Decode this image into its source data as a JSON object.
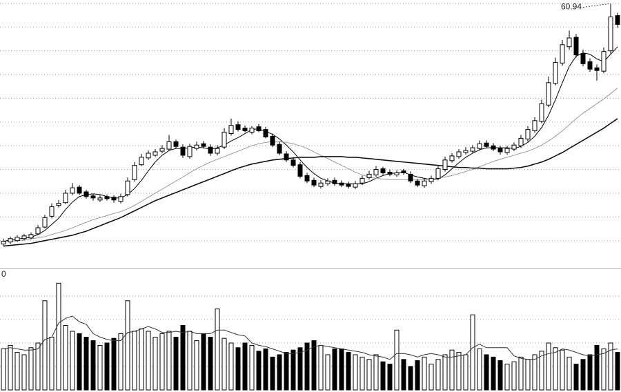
{
  "chart_data": [
    {
      "type": "candlestick",
      "open": [
        25.5,
        25.8,
        26.0,
        26.3,
        26.4,
        27.0,
        28.0,
        29.6,
        31.2,
        31.6,
        33.0,
        33.9,
        33.2,
        32.6,
        32.0,
        32.5,
        32.4,
        31.8,
        32.8,
        35.0,
        37.2,
        38.2,
        38.6,
        39.2,
        39.5,
        40.6,
        39.8,
        38.4,
        39.6,
        40.3,
        39.8,
        38.9,
        39.8,
        41.8,
        43.1,
        42.6,
        42.0,
        42.8,
        42.4,
        41.4,
        40.2,
        38.8,
        37.9,
        37.2,
        35.6,
        34.9,
        34.0,
        34.4,
        34.9,
        34.5,
        34.3,
        33.9,
        34.5,
        35.3,
        35.7,
        36.6,
        36.1,
        35.7,
        36.3,
        35.8,
        34.8,
        34.1,
        34.7,
        35.2,
        36.5,
        37.8,
        38.4,
        39.0,
        39.2,
        39.6,
        40.4,
        40.0,
        39.6,
        39.0,
        39.5,
        40.0,
        41.0,
        42.2,
        43.6,
        46.0,
        49.2,
        52.2,
        54.6,
        56.0,
        53.6,
        52.4,
        51.5,
        51.0,
        54.0,
        59.2
      ],
      "high": [
        26.3,
        26.6,
        26.8,
        27.0,
        27.2,
        28.3,
        29.8,
        31.5,
        32.0,
        33.5,
        34.5,
        34.2,
        33.5,
        32.9,
        32.7,
        32.8,
        32.7,
        32.9,
        35.3,
        37.6,
        38.8,
        39.3,
        39.5,
        40.1,
        41.6,
        40.9,
        40.2,
        40.3,
        40.6,
        40.7,
        40.2,
        40.1,
        42.6,
        44.0,
        43.6,
        43.0,
        42.9,
        43.2,
        42.8,
        41.8,
        40.6,
        39.2,
        38.3,
        37.6,
        36.0,
        35.3,
        34.9,
        35.2,
        35.3,
        34.9,
        34.7,
        34.8,
        35.6,
        36.3,
        37.0,
        36.9,
        36.5,
        36.4,
        36.6,
        36.2,
        35.1,
        35.2,
        35.6,
        37.0,
        38.4,
        38.9,
        39.5,
        39.8,
        40.1,
        40.8,
        40.8,
        40.4,
        40.0,
        40.0,
        40.5,
        41.6,
        42.9,
        44.2,
        46.8,
        50.2,
        53.0,
        55.6,
        57.0,
        56.5,
        54.2,
        52.9,
        52.0,
        54.5,
        60.94,
        59.6
      ],
      "low": [
        25.3,
        25.5,
        25.8,
        26.0,
        26.2,
        26.8,
        27.8,
        29.3,
        30.9,
        31.4,
        32.7,
        32.7,
        32.2,
        31.9,
        31.7,
        31.9,
        31.6,
        31.5,
        32.5,
        34.7,
        37.0,
        37.9,
        38.4,
        38.9,
        39.3,
        39.6,
        38.2,
        38.1,
        39.3,
        39.6,
        38.5,
        38.6,
        39.5,
        41.5,
        42.1,
        42.0,
        41.7,
        42.0,
        41.1,
        39.8,
        38.6,
        37.6,
        36.8,
        35.2,
        34.5,
        33.9,
        33.7,
        34.1,
        34.1,
        33.9,
        33.7,
        33.6,
        34.2,
        35.0,
        35.4,
        35.7,
        35.5,
        35.4,
        35.7,
        34.5,
        33.9,
        33.8,
        34.4,
        34.9,
        36.2,
        37.5,
        38.1,
        38.7,
        38.9,
        39.3,
        39.6,
        39.2,
        38.7,
        38.7,
        39.2,
        39.7,
        40.6,
        41.9,
        43.3,
        45.7,
        48.9,
        51.8,
        54.2,
        53.0,
        51.7,
        50.9,
        49.6,
        50.7,
        53.6,
        57.4
      ],
      "close": [
        25.9,
        26.3,
        26.5,
        26.7,
        26.9,
        27.9,
        29.4,
        31.0,
        31.5,
        33.0,
        33.8,
        33.0,
        32.5,
        32.3,
        32.3,
        32.2,
        32.0,
        32.5,
        34.8,
        37.1,
        38.3,
        38.9,
        39.1,
        39.6,
        40.6,
        39.9,
        38.6,
        39.9,
        40.1,
        39.9,
        38.9,
        39.6,
        42.0,
        43.0,
        42.4,
        42.2,
        42.6,
        42.2,
        41.3,
        40.1,
        38.9,
        37.9,
        37.1,
        35.5,
        34.8,
        34.2,
        34.5,
        34.8,
        34.4,
        34.2,
        34.0,
        34.4,
        35.2,
        35.8,
        36.5,
        36.0,
        35.8,
        36.0,
        36.0,
        34.8,
        34.2,
        34.8,
        35.2,
        36.6,
        37.9,
        38.5,
        39.1,
        39.3,
        39.7,
        40.3,
        39.9,
        39.5,
        39.1,
        39.6,
        40.1,
        41.1,
        42.4,
        43.7,
        46.2,
        49.3,
        52.3,
        54.9,
        55.9,
        53.4,
        52.1,
        51.3,
        51.1,
        53.9,
        59.0,
        57.9
      ],
      "series": [
        {
          "color": "#000000",
          "values": [
            25.9,
            26.1,
            26.2,
            26.4,
            26.5,
            26.9,
            27.5,
            28.4,
            29.3,
            30.6,
            31.7,
            32.5,
            32.8,
            32.9,
            32.8,
            32.5,
            32.3,
            32.3,
            32.8,
            33.7,
            34.9,
            36.3,
            37.6,
            38.6,
            39.3,
            39.6,
            39.6,
            39.7,
            39.8,
            39.7,
            39.5,
            39.7,
            40.1,
            40.7,
            41.2,
            41.8,
            42.4,
            42.5,
            42.1,
            41.7,
            41.0,
            40.1,
            39.1,
            37.9,
            36.8,
            35.9,
            35.2,
            34.8,
            34.5,
            34.4,
            34.4,
            34.4,
            34.4,
            34.7,
            35.2,
            35.6,
            35.9,
            36.0,
            36.1,
            35.7,
            35.4,
            35.2,
            35.0,
            35.1,
            35.7,
            36.6,
            37.5,
            38.3,
            38.9,
            39.4,
            39.7,
            39.7,
            39.7,
            39.7,
            39.6,
            39.9,
            40.5,
            41.4,
            42.7,
            44.5,
            46.8,
            49.3,
            51.7,
            53.2,
            53.7,
            53.5,
            52.8,
            52.4,
            53.5,
            54.6
          ]
        },
        {
          "color": "#9a9a9a",
          "values": [
            25.8,
            25.9,
            26.0,
            26.1,
            26.3,
            26.4,
            26.6,
            26.9,
            27.2,
            27.5,
            27.9,
            28.3,
            28.7,
            29.1,
            29.4,
            29.7,
            30.0,
            30.3,
            30.7,
            31.2,
            31.8,
            32.4,
            33.0,
            33.6,
            34.2,
            34.8,
            35.4,
            36.0,
            36.6,
            37.1,
            37.6,
            38.0,
            38.4,
            38.8,
            39.2,
            39.6,
            40.0,
            40.3,
            40.5,
            40.6,
            40.6,
            40.5,
            40.3,
            40.0,
            39.6,
            39.1,
            38.6,
            38.1,
            37.6,
            37.1,
            36.6,
            36.1,
            35.7,
            35.4,
            35.2,
            35.1,
            35.0,
            35.0,
            35.0,
            35.0,
            35.0,
            35.0,
            35.1,
            35.2,
            35.4,
            35.6,
            35.9,
            36.2,
            36.5,
            36.9,
            37.3,
            37.7,
            38.0,
            38.3,
            38.6,
            38.9,
            39.2,
            39.6,
            40.1,
            40.7,
            41.4,
            42.2,
            43.1,
            44.0,
            44.8,
            45.5,
            46.2,
            46.9,
            47.7,
            48.5
          ]
        },
        {
          "color": "#111111",
          "values": [
            25.2,
            25.3,
            25.4,
            25.5,
            25.6,
            25.8,
            26.0,
            26.2,
            26.4,
            26.6,
            26.8,
            27.1,
            27.4,
            27.8,
            28.2,
            28.6,
            29.0,
            29.4,
            29.9,
            30.4,
            30.9,
            31.4,
            31.9,
            32.3,
            32.7,
            33.1,
            33.5,
            33.9,
            34.3,
            34.7,
            35.1,
            35.5,
            35.9,
            36.3,
            36.7,
            37.0,
            37.3,
            37.5,
            37.7,
            37.9,
            38.0,
            38.1,
            38.2,
            38.3,
            38.3,
            38.3,
            38.4,
            38.4,
            38.4,
            38.4,
            38.3,
            38.3,
            38.2,
            38.1,
            38.0,
            37.9,
            37.8,
            37.7,
            37.6,
            37.5,
            37.4,
            37.3,
            37.2,
            37.1,
            37.0,
            36.9,
            36.8,
            36.8,
            36.7,
            36.7,
            36.6,
            36.6,
            36.6,
            36.6,
            36.7,
            36.8,
            37.0,
            37.3,
            37.6,
            38.0,
            38.5,
            39.0,
            39.6,
            40.2,
            40.8,
            41.4,
            42.0,
            42.6,
            43.3,
            44.0
          ]
        }
      ],
      "ylim": [
        22,
        61.5
      ],
      "yticks": [
        26,
        29.5,
        33,
        36.5,
        40,
        43.5,
        47,
        50.5,
        54,
        57.5,
        61
      ],
      "grid": true
    },
    {
      "type": "bar",
      "axis_label": "0",
      "values": [
        35,
        38,
        32,
        30,
        36,
        40,
        76,
        45,
        91,
        55,
        50,
        48,
        45,
        42,
        38,
        40,
        44,
        48,
        76,
        50,
        52,
        50,
        45,
        48,
        50,
        45,
        55,
        50,
        42,
        48,
        45,
        69,
        44,
        40,
        36,
        40,
        38,
        33,
        35,
        28,
        30,
        32,
        34,
        36,
        40,
        42,
        38,
        30,
        35,
        35,
        32,
        30,
        28,
        26,
        30,
        24,
        22,
        51,
        26,
        20,
        25,
        28,
        22,
        26,
        30,
        34,
        32,
        30,
        64,
        35,
        30,
        28,
        25,
        22,
        24,
        28,
        26,
        30,
        33,
        40,
        36,
        34,
        28,
        22,
        26,
        30,
        38,
        35,
        40,
        32
      ],
      "series": [
        {
          "color": "#333333",
          "values": [
            35,
            36,
            35,
            34,
            34,
            35,
            43,
            45,
            57,
            61,
            63,
            58,
            56,
            48,
            45,
            43,
            42,
            42,
            49,
            50,
            52,
            54,
            52,
            49,
            49,
            50,
            49,
            50,
            48,
            48,
            48,
            51,
            51,
            49,
            47,
            46,
            40,
            38,
            37,
            35,
            33,
            31,
            31,
            32,
            34,
            37,
            38,
            37,
            36,
            35,
            34,
            33,
            32,
            30,
            29,
            28,
            26,
            31,
            31,
            30,
            28,
            30,
            31,
            30,
            28,
            28,
            29,
            30,
            36,
            39,
            36,
            36,
            36,
            36,
            29,
            27,
            26,
            26,
            29,
            31,
            32,
            35,
            34,
            32,
            30,
            29,
            30,
            31,
            34,
            35
          ]
        }
      ],
      "ylim": [
        0,
        100
      ],
      "yticks": [
        20,
        40,
        60,
        80
      ],
      "grid": true
    }
  ]
}
